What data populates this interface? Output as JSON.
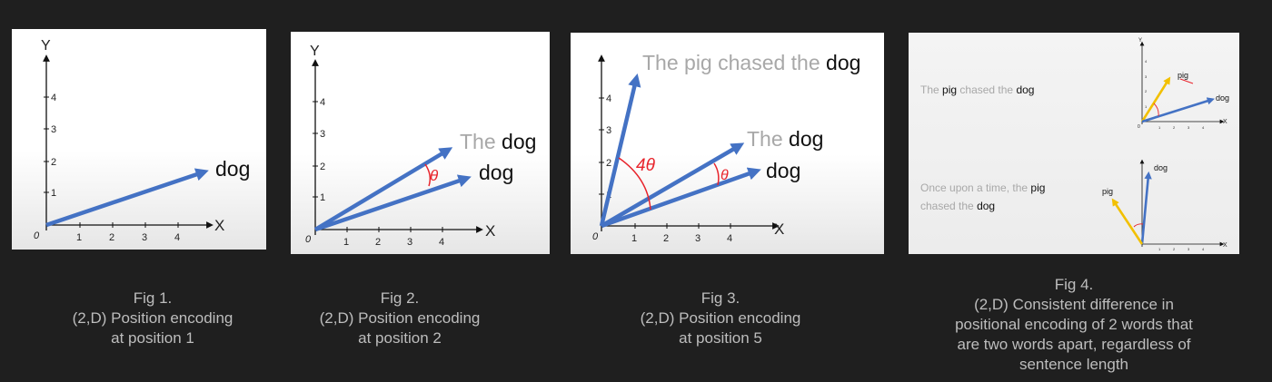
{
  "axis": {
    "x": "X",
    "y": "Y",
    "origin": "0",
    "ticks": [
      "1",
      "2",
      "3",
      "4"
    ]
  },
  "colors": {
    "vector": "#4472c4",
    "pig_vector": "#f2c000",
    "angle": "#e8242c",
    "faded_text": "#a8a8a8",
    "caption": "#bdbdbd",
    "background": "#1f1f1f"
  },
  "fig1": {
    "word": "dog",
    "caption": [
      "Fig 1.",
      "(2,D) Position encoding",
      "at position 1"
    ]
  },
  "fig2": {
    "phrase_the": "The",
    "phrase_dog": "dog",
    "word": "dog",
    "angle_label": "θ",
    "caption": [
      "Fig 2.",
      "(2,D) Position encoding",
      "at position 2"
    ]
  },
  "fig3": {
    "sentence_faded": "The pig chased the",
    "sentence_dog": "dog",
    "phrase_the": "The",
    "phrase_dog": "dog",
    "word": "dog",
    "big_angle_label": "4θ",
    "angle_label": "θ",
    "caption": [
      "Fig 3.",
      "(2,D) Position encoding",
      "at position 5"
    ]
  },
  "fig4": {
    "top": {
      "the": "The",
      "pig": "pig",
      "chased_the": "chased the",
      "dog": "dog",
      "vec_pig": "pig",
      "vec_dog": "dog"
    },
    "bottom": {
      "line1": "Once upon a time, the",
      "pig": "pig",
      "line2": "chased the",
      "dog": "dog",
      "vec_pig": "pig",
      "vec_dog": "dog"
    },
    "caption": [
      "Fig 4.",
      "(2,D) Consistent difference in",
      "positional encoding of 2 words that",
      "are two words apart, regardless of",
      "sentence length"
    ]
  }
}
